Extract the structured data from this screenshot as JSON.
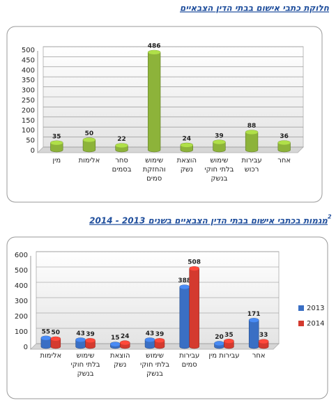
{
  "chart_data": [
    {
      "type": "bar",
      "title": "חלוקת כתבי אישום בבתי הדין הצבאיים",
      "categories": [
        "מין",
        "אלימות",
        "סחר בסמים",
        "שימוש והחזקת סמים",
        "הוצאת נשק",
        "שימוש בלתי חוקי בנשק",
        "עבירות רכוש",
        "אחר"
      ],
      "values": [
        35,
        50,
        22,
        486,
        24,
        39,
        88,
        36
      ],
      "color": "#8db33a",
      "ylim": [
        0,
        500
      ],
      "yticks": [
        0,
        50,
        100,
        150,
        200,
        250,
        300,
        350,
        400,
        450,
        500
      ],
      "grid": true
    },
    {
      "type": "bar",
      "title": "מגמות בכתבי אישום בבתי הדין הצבאיים בשנים 2013 - 2014",
      "title_footnote": "2",
      "categories": [
        "אלימות",
        "שימוש בלתי חוקי בנשק",
        "הוצאת נשק",
        "שימוש בלתי חוקי בנשק",
        "עבירות סמים",
        "עבירות מין",
        "אחר"
      ],
      "series": [
        {
          "name": "2013",
          "color": "#3a6fc4",
          "values": [
            55,
            43,
            15,
            43,
            388,
            20,
            171
          ]
        },
        {
          "name": "2014",
          "color": "#d43a2f",
          "values": [
            50,
            39,
            24,
            39,
            508,
            35,
            33
          ]
        }
      ],
      "ylim": [
        0,
        600
      ],
      "yticks": [
        0,
        100,
        200,
        300,
        400,
        500,
        600
      ],
      "grid": true,
      "legend": "right"
    }
  ]
}
